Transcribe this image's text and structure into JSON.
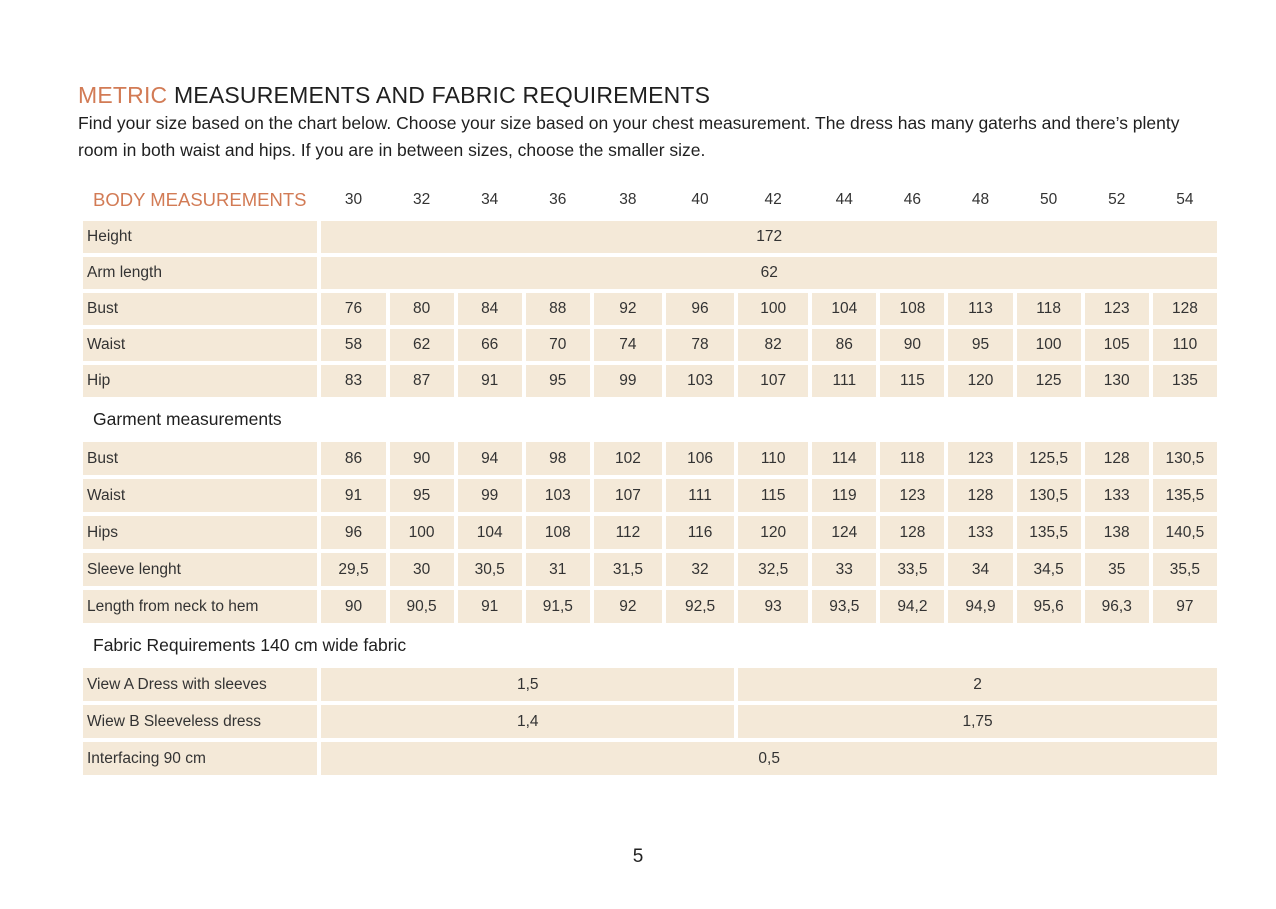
{
  "heading": {
    "accent": "METRIC",
    "rest": " MEASUREMENTS AND FABRIC REQUIREMENTS"
  },
  "intro": "Find your size based on the chart below. Choose your size based on your chest measurement. The dress has many gaterhs and there’s plenty room in both waist and hips. If you are in between sizes, choose the smaller size.",
  "body_header": "BODY MEASUREMENTS",
  "sizes": [
    "30",
    "32",
    "34",
    "36",
    "38",
    "40",
    "42",
    "44",
    "46",
    "48",
    "50",
    "52",
    "54"
  ],
  "body_rows": [
    {
      "label": "Height",
      "span_value": "172"
    },
    {
      "label": "Arm length",
      "span_value": "62"
    },
    {
      "label": "Bust",
      "values": [
        "76",
        "80",
        "84",
        "88",
        "92",
        "96",
        "100",
        "104",
        "108",
        "113",
        "118",
        "123",
        "128"
      ]
    },
    {
      "label": "Waist",
      "values": [
        "58",
        "62",
        "66",
        "70",
        "74",
        "78",
        "82",
        "86",
        "90",
        "95",
        "100",
        "105",
        "110"
      ]
    },
    {
      "label": "Hip",
      "values": [
        "83",
        "87",
        "91",
        "95",
        "99",
        "103",
        "107",
        "111",
        "115",
        "120",
        "125",
        "130",
        "135"
      ]
    }
  ],
  "garment_header": "Garment measurements",
  "garment_rows": [
    {
      "label": "Bust",
      "values": [
        "86",
        "90",
        "94",
        "98",
        "102",
        "106",
        "110",
        "114",
        "118",
        "123",
        "125,5",
        "128",
        "130,5"
      ]
    },
    {
      "label": "Waist",
      "values": [
        "91",
        "95",
        "99",
        "103",
        "107",
        "111",
        "115",
        "119",
        "123",
        "128",
        "130,5",
        "133",
        "135,5"
      ]
    },
    {
      "label": "Hips",
      "values": [
        "96",
        "100",
        "104",
        "108",
        "112",
        "116",
        "120",
        "124",
        "128",
        "133",
        "135,5",
        "138",
        "140,5"
      ]
    },
    {
      "label": "Sleeve lenght",
      "values": [
        "29,5",
        "30",
        "30,5",
        "31",
        "31,5",
        "32",
        "32,5",
        "33",
        "33,5",
        "34",
        "34,5",
        "35",
        "35,5"
      ]
    },
    {
      "label": "Length from neck to hem",
      "values": [
        "90",
        "90,5",
        "91",
        "91,5",
        "92",
        "92,5",
        "93",
        "93,5",
        "94,2",
        "94,9",
        "95,6",
        "96,3",
        "97"
      ]
    }
  ],
  "fabric_header": "Fabric Requirements 140 cm wide fabric",
  "fabric_rows": [
    {
      "label": "View A Dress with sleeves",
      "small": "1,5",
      "large": "2"
    },
    {
      "label": "Wiew B Sleeveless dress",
      "small": "1,4",
      "large": "1,75"
    },
    {
      "label": "Interfacing 90 cm",
      "span_value": "0,5"
    }
  ],
  "page_number": "5"
}
